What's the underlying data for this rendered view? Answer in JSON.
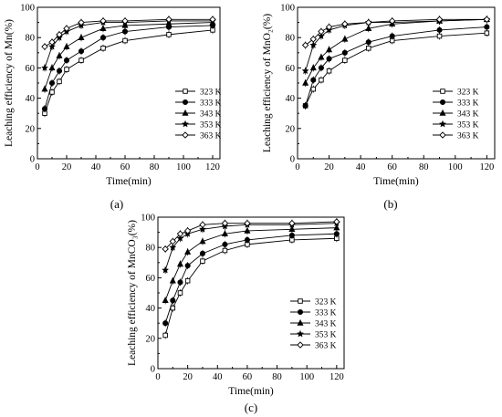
{
  "chart_data": [
    {
      "type": "line",
      "panel_label": "(a)",
      "xlabel": "Time(min)",
      "ylabel": "Leaching efficiency of Mn(%)",
      "xlim": [
        0,
        125
      ],
      "ylim": [
        0,
        100
      ],
      "xticks": [
        "0",
        "20",
        "40",
        "60",
        "80",
        "100",
        "120"
      ],
      "yticks": [
        "0",
        "20",
        "40",
        "60",
        "80",
        "100"
      ],
      "legend_position": "right-middle",
      "x": [
        5,
        10,
        15,
        20,
        30,
        45,
        60,
        90,
        120
      ],
      "series": [
        {
          "name": "323 K",
          "marker": "open-square",
          "values": [
            30,
            44,
            51,
            59,
            65,
            73,
            78,
            82,
            85
          ]
        },
        {
          "name": "333 K",
          "marker": "filled-circle",
          "values": [
            33,
            50,
            58,
            65,
            71,
            80,
            84,
            87,
            88
          ]
        },
        {
          "name": "343 K",
          "marker": "filled-triangle",
          "values": [
            46,
            60,
            68,
            74,
            80,
            86,
            88,
            89,
            90
          ]
        },
        {
          "name": "353 K",
          "marker": "filled-star",
          "values": [
            60,
            74,
            80,
            84,
            88,
            90,
            90,
            91,
            91
          ]
        },
        {
          "name": "363 K",
          "marker": "open-diamond",
          "values": [
            74,
            77,
            82,
            86,
            90,
            91,
            91,
            92,
            92
          ]
        }
      ]
    },
    {
      "type": "line",
      "panel_label": "(b)",
      "xlabel": "Time(min)",
      "ylabel": "Leaching efficiency of MnO₂(%)",
      "xlim": [
        0,
        125
      ],
      "ylim": [
        0,
        100
      ],
      "xticks": [
        "0",
        "20",
        "40",
        "60",
        "80",
        "100",
        "120"
      ],
      "yticks": [
        "0",
        "20",
        "40",
        "60",
        "80",
        "100"
      ],
      "legend_position": "right-middle",
      "x": [
        5,
        10,
        15,
        20,
        30,
        45,
        60,
        90,
        120
      ],
      "series": [
        {
          "name": "323 K",
          "marker": "open-square",
          "values": [
            35,
            46,
            52,
            58,
            65,
            73,
            78,
            81,
            83
          ]
        },
        {
          "name": "333 K",
          "marker": "filled-circle",
          "values": [
            35,
            52,
            60,
            66,
            70,
            77,
            81,
            85,
            87
          ]
        },
        {
          "name": "343 K",
          "marker": "filled-triangle",
          "values": [
            50,
            60,
            67,
            72,
            79,
            86,
            89,
            91,
            92
          ]
        },
        {
          "name": "353 K",
          "marker": "filled-star",
          "values": [
            58,
            75,
            81,
            85,
            88,
            90,
            90,
            91,
            92
          ]
        },
        {
          "name": "363 K",
          "marker": "open-diamond",
          "values": [
            75,
            79,
            84,
            87,
            89,
            90,
            91,
            92,
            92
          ]
        }
      ]
    },
    {
      "type": "line",
      "panel_label": "(c)",
      "xlabel": "Time(min)",
      "ylabel": "Leaching efficiency of MnCO₃(%)",
      "xlim": [
        0,
        125
      ],
      "ylim": [
        0,
        100
      ],
      "xticks": [
        "0",
        "20",
        "40",
        "60",
        "80",
        "100",
        "120"
      ],
      "yticks": [
        "0",
        "20",
        "40",
        "60",
        "80",
        "100"
      ],
      "legend_position": "right-middle",
      "x": [
        5,
        10,
        15,
        20,
        30,
        45,
        60,
        90,
        120
      ],
      "series": [
        {
          "name": "323 K",
          "marker": "open-square",
          "values": [
            22,
            40,
            50,
            58,
            71,
            78,
            82,
            85,
            86
          ]
        },
        {
          "name": "333 K",
          "marker": "filled-circle",
          "values": [
            30,
            45,
            57,
            68,
            76,
            82,
            85,
            88,
            89
          ]
        },
        {
          "name": "343 K",
          "marker": "filled-triangle",
          "values": [
            45,
            58,
            69,
            77,
            84,
            89,
            91,
            92,
            93
          ]
        },
        {
          "name": "353 K",
          "marker": "filled-star",
          "values": [
            65,
            80,
            86,
            89,
            92,
            94,
            95,
            95,
            96
          ]
        },
        {
          "name": "363 K",
          "marker": "open-diamond",
          "values": [
            79,
            84,
            89,
            91,
            95,
            96,
            96,
            96,
            97
          ]
        }
      ]
    }
  ]
}
